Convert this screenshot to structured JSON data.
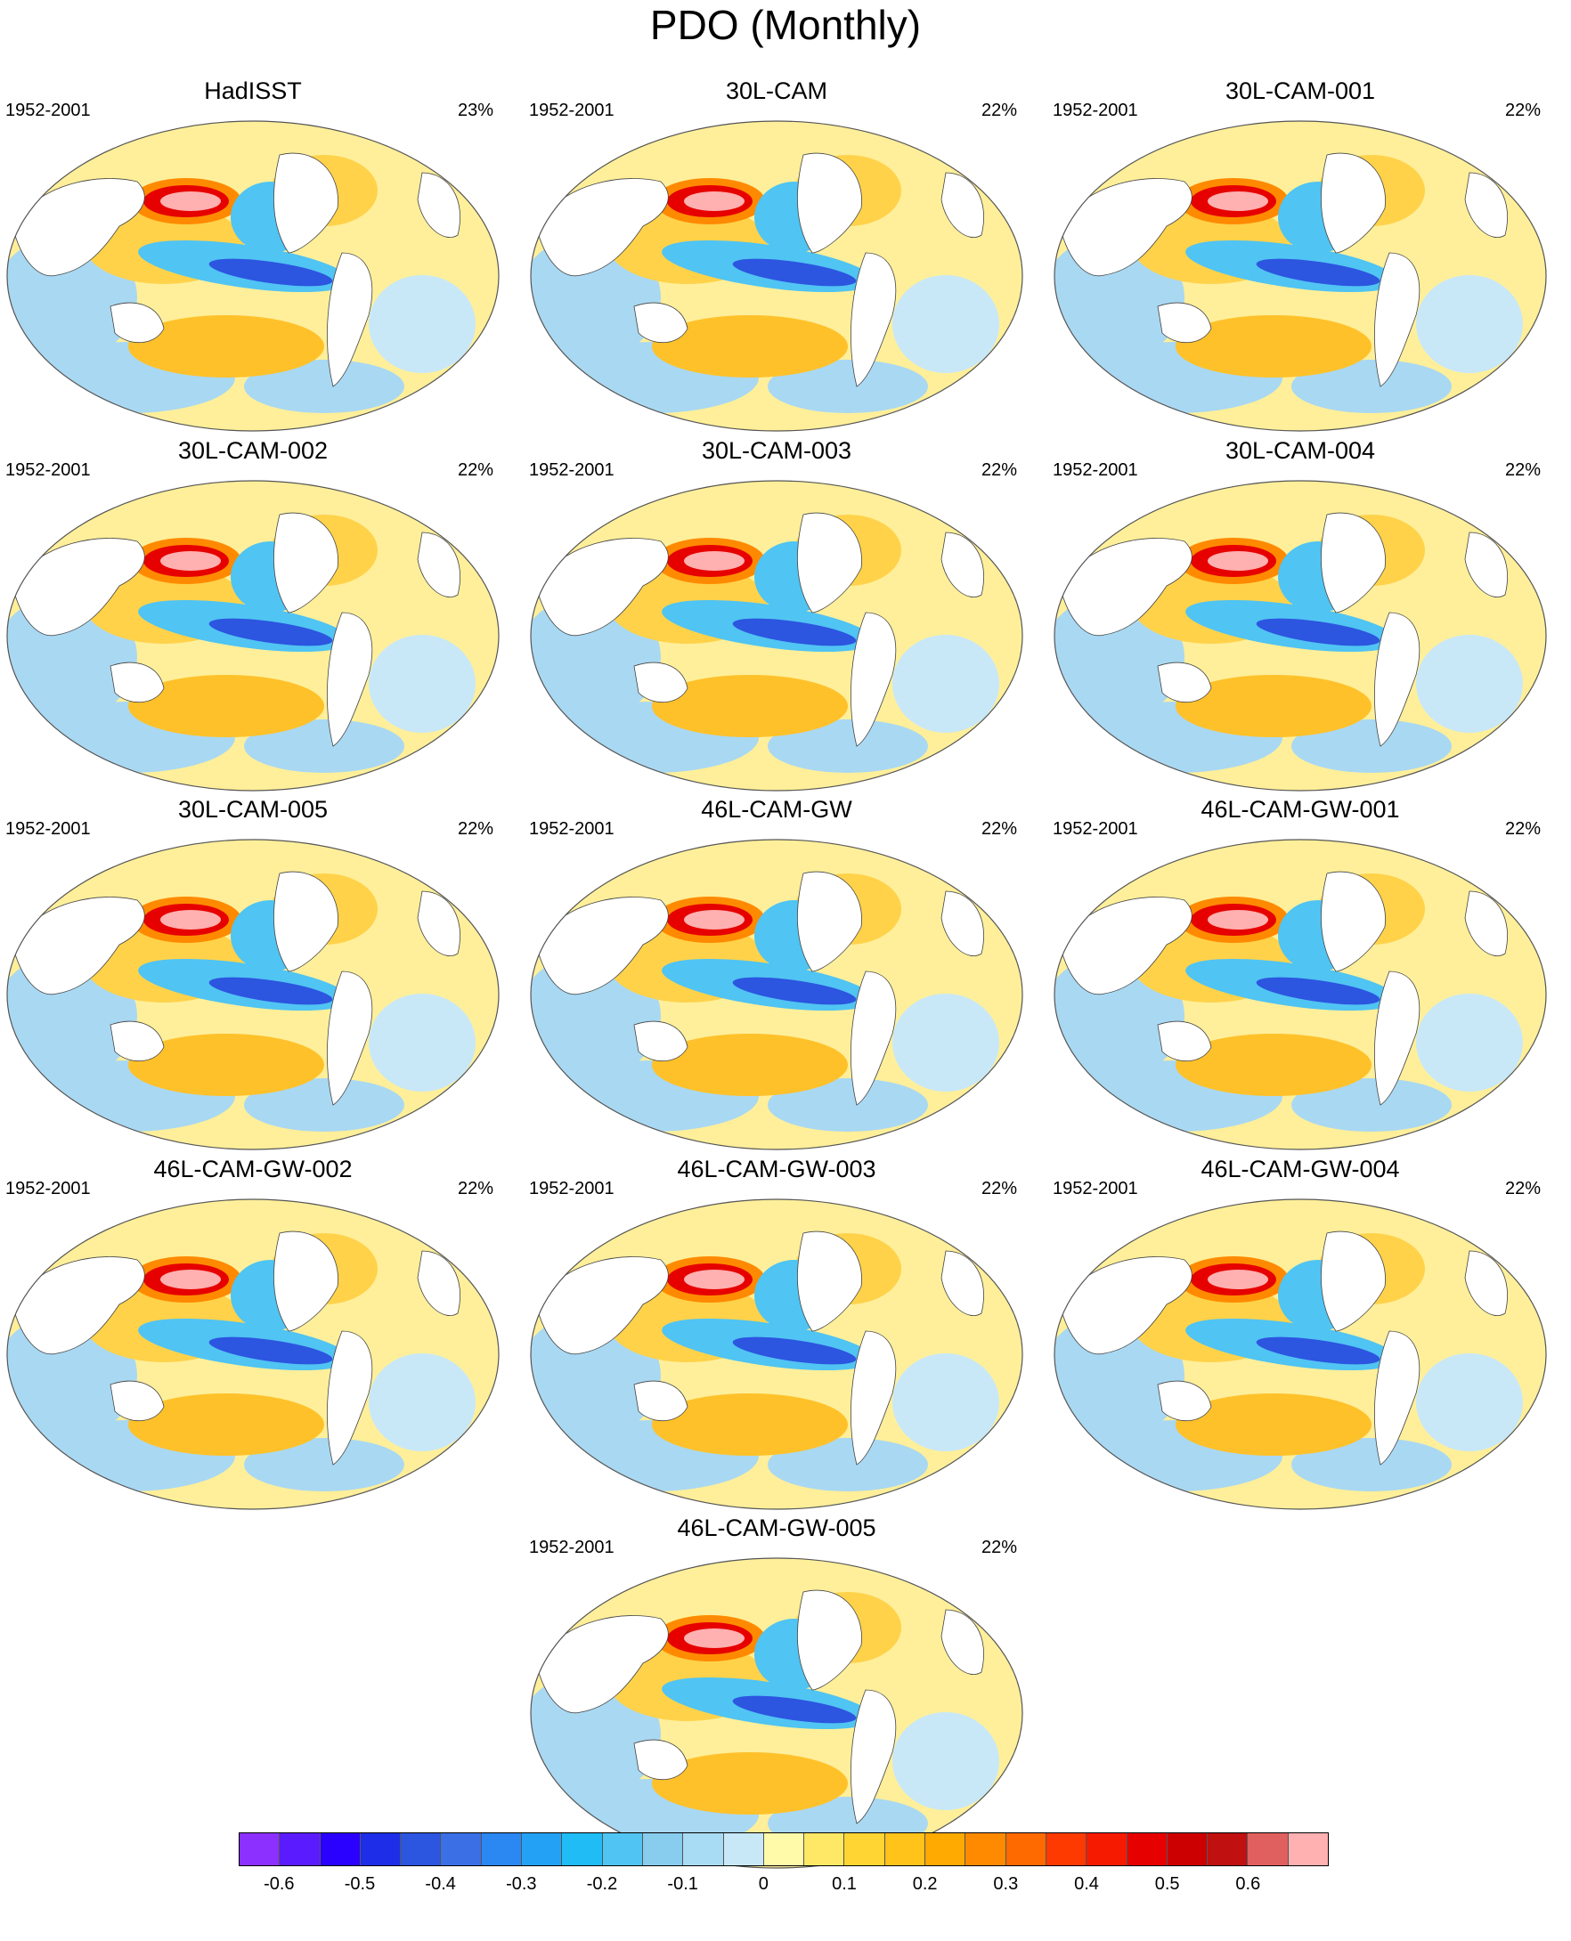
{
  "title": "PDO (Monthly)",
  "panels": [
    {
      "name": "HadISST",
      "years": "1952-2001",
      "pct": "23%"
    },
    {
      "name": "30L-CAM",
      "years": "1952-2001",
      "pct": "22%"
    },
    {
      "name": "30L-CAM-001",
      "years": "1952-2001",
      "pct": "22%"
    },
    {
      "name": "30L-CAM-002",
      "years": "1952-2001",
      "pct": "22%"
    },
    {
      "name": "30L-CAM-003",
      "years": "1952-2001",
      "pct": "22%"
    },
    {
      "name": "30L-CAM-004",
      "years": "1952-2001",
      "pct": "22%"
    },
    {
      "name": "30L-CAM-005",
      "years": "1952-2001",
      "pct": "22%"
    },
    {
      "name": "46L-CAM-GW",
      "years": "1952-2001",
      "pct": "22%"
    },
    {
      "name": "46L-CAM-GW-001",
      "years": "1952-2001",
      "pct": "22%"
    },
    {
      "name": "46L-CAM-GW-002",
      "years": "1952-2001",
      "pct": "22%"
    },
    {
      "name": "46L-CAM-GW-003",
      "years": "1952-2001",
      "pct": "22%"
    },
    {
      "name": "46L-CAM-GW-004",
      "years": "1952-2001",
      "pct": "22%"
    },
    {
      "name": "46L-CAM-GW-005",
      "years": "1952-2001",
      "pct": "22%"
    }
  ],
  "colorbar": {
    "colors": [
      "#8c30ff",
      "#5a1cff",
      "#2a00ff",
      "#1e2ee8",
      "#2c55e0",
      "#3a6fe6",
      "#2b87f2",
      "#23a2f5",
      "#1fbcf5",
      "#50c4f2",
      "#88cdee",
      "#a8dbf4",
      "#c8e8f8",
      "#fffaaa",
      "#ffe866",
      "#ffd533",
      "#ffc31a",
      "#ffaa00",
      "#ff8a00",
      "#ff6a00",
      "#ff3a00",
      "#f51a00",
      "#e60000",
      "#cc0000",
      "#c01010",
      "#e06060",
      "#ffb0b0"
    ],
    "labels": [
      "-0.6",
      "-0.5",
      "-0.4",
      "-0.3",
      "-0.2",
      "-0.1",
      "0",
      "0.1",
      "0.2",
      "0.3",
      "0.4",
      "0.5",
      "0.6"
    ]
  }
}
